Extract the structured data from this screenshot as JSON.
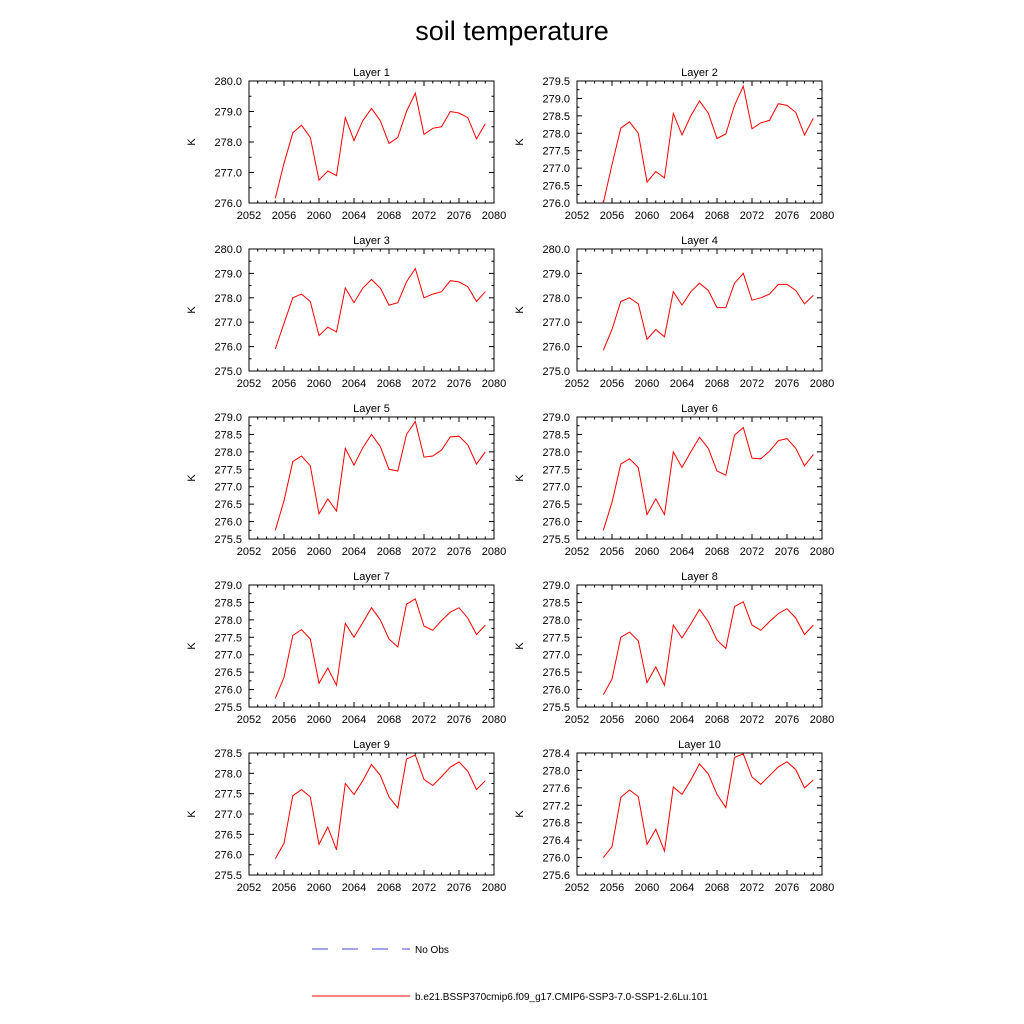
{
  "figure": {
    "title": "soil temperature",
    "legend": {
      "no_obs_label": "No Obs",
      "no_obs_color": "#4a4ad0",
      "run_label": "b.e21.BSSP370cmip6.f09_g17.CMIP6-SSP3-7.0-SSP1-2.6Lu.101",
      "run_color": "#ff0000"
    }
  },
  "chart_data": [
    {
      "type": "line",
      "title": "Layer 1",
      "xlabel": "",
      "ylabel": "K",
      "xlim": [
        2052,
        2080
      ],
      "ylim": [
        276.0,
        280.0
      ],
      "x_ticks": [
        2052,
        2056,
        2060,
        2064,
        2068,
        2072,
        2076,
        2080
      ],
      "y_ticks": [
        "276.0",
        "277.0",
        "278.0",
        "279.0",
        "280.0"
      ],
      "series": [
        {
          "color": "#ff0000",
          "x": [
            2055,
            2056,
            2057,
            2058,
            2059,
            2060,
            2061,
            2062,
            2063,
            2064,
            2065,
            2066,
            2067,
            2068,
            2069,
            2070,
            2071,
            2072,
            2073,
            2074,
            2075,
            2076,
            2077,
            2078,
            2079
          ],
          "values": [
            276.15,
            277.3,
            278.3,
            278.55,
            278.15,
            276.75,
            277.05,
            276.9,
            278.8,
            278.05,
            278.7,
            279.1,
            278.7,
            277.95,
            278.15,
            279.0,
            279.6,
            278.25,
            278.45,
            278.5,
            279.0,
            278.95,
            278.8,
            278.1,
            278.6
          ]
        }
      ]
    },
    {
      "type": "line",
      "title": "Layer 2",
      "xlabel": "",
      "ylabel": "K",
      "xlim": [
        2052,
        2080
      ],
      "ylim": [
        276.0,
        279.5
      ],
      "x_ticks": [
        2052,
        2056,
        2060,
        2064,
        2068,
        2072,
        2076,
        2080
      ],
      "y_ticks": [
        "276.0",
        "276.5",
        "277.0",
        "277.5",
        "278.0",
        "278.5",
        "279.0",
        "279.5"
      ],
      "series": [
        {
          "color": "#ff0000",
          "x": [
            2055,
            2056,
            2057,
            2058,
            2059,
            2060,
            2061,
            2062,
            2063,
            2064,
            2065,
            2066,
            2067,
            2068,
            2069,
            2070,
            2071,
            2072,
            2073,
            2074,
            2075,
            2076,
            2077,
            2078,
            2079
          ],
          "values": [
            276.0,
            277.1,
            278.15,
            278.33,
            278.0,
            276.6,
            276.9,
            276.72,
            278.57,
            277.95,
            278.5,
            278.93,
            278.58,
            277.85,
            277.98,
            278.8,
            279.35,
            278.13,
            278.3,
            278.37,
            278.85,
            278.8,
            278.6,
            277.95,
            278.43
          ]
        }
      ]
    },
    {
      "type": "line",
      "title": "Layer 3",
      "xlabel": "",
      "ylabel": "K",
      "xlim": [
        2052,
        2080
      ],
      "ylim": [
        275.0,
        280.0
      ],
      "x_ticks": [
        2052,
        2056,
        2060,
        2064,
        2068,
        2072,
        2076,
        2080
      ],
      "y_ticks": [
        "275.0",
        "276.0",
        "277.0",
        "278.0",
        "279.0",
        "280.0"
      ],
      "series": [
        {
          "color": "#ff0000",
          "x": [
            2055,
            2056,
            2057,
            2058,
            2059,
            2060,
            2061,
            2062,
            2063,
            2064,
            2065,
            2066,
            2067,
            2068,
            2069,
            2070,
            2071,
            2072,
            2073,
            2074,
            2075,
            2076,
            2077,
            2078,
            2079
          ],
          "values": [
            275.9,
            276.95,
            278.0,
            278.15,
            277.85,
            276.45,
            276.8,
            276.6,
            278.4,
            277.8,
            278.4,
            278.75,
            278.4,
            277.7,
            277.8,
            278.65,
            279.2,
            278.0,
            278.15,
            278.25,
            278.7,
            278.65,
            278.45,
            277.85,
            278.25
          ]
        }
      ]
    },
    {
      "type": "line",
      "title": "Layer 4",
      "xlabel": "",
      "ylabel": "K",
      "xlim": [
        2052,
        2080
      ],
      "ylim": [
        275.0,
        280.0
      ],
      "x_ticks": [
        2052,
        2056,
        2060,
        2064,
        2068,
        2072,
        2076,
        2080
      ],
      "y_ticks": [
        "275.0",
        "276.0",
        "277.0",
        "278.0",
        "279.0",
        "280.0"
      ],
      "series": [
        {
          "color": "#ff0000",
          "x": [
            2055,
            2056,
            2057,
            2058,
            2059,
            2060,
            2061,
            2062,
            2063,
            2064,
            2065,
            2066,
            2067,
            2068,
            2069,
            2070,
            2071,
            2072,
            2073,
            2074,
            2075,
            2076,
            2077,
            2078,
            2079
          ],
          "values": [
            275.85,
            276.7,
            277.85,
            278.0,
            277.75,
            276.3,
            276.7,
            276.4,
            278.25,
            277.7,
            278.25,
            278.6,
            278.3,
            277.6,
            277.6,
            278.6,
            279.0,
            277.9,
            278.0,
            278.15,
            278.55,
            278.55,
            278.3,
            277.75,
            278.1
          ]
        }
      ]
    },
    {
      "type": "line",
      "title": "Layer 5",
      "xlabel": "",
      "ylabel": "K",
      "xlim": [
        2052,
        2080
      ],
      "ylim": [
        275.5,
        279.0
      ],
      "x_ticks": [
        2052,
        2056,
        2060,
        2064,
        2068,
        2072,
        2076,
        2080
      ],
      "y_ticks": [
        "275.5",
        "276.0",
        "276.5",
        "277.0",
        "277.5",
        "278.0",
        "278.5",
        "279.0"
      ],
      "series": [
        {
          "color": "#ff0000",
          "x": [
            2055,
            2056,
            2057,
            2058,
            2059,
            2060,
            2061,
            2062,
            2063,
            2064,
            2065,
            2066,
            2067,
            2068,
            2069,
            2070,
            2071,
            2072,
            2073,
            2074,
            2075,
            2076,
            2077,
            2078,
            2079
          ],
          "values": [
            275.75,
            276.6,
            277.72,
            277.88,
            277.6,
            276.22,
            276.65,
            276.3,
            278.1,
            277.62,
            278.12,
            278.5,
            278.15,
            277.5,
            277.45,
            278.5,
            278.87,
            277.85,
            277.88,
            278.05,
            278.43,
            278.45,
            278.2,
            277.65,
            278.0
          ]
        }
      ]
    },
    {
      "type": "line",
      "title": "Layer 6",
      "xlabel": "",
      "ylabel": "K",
      "xlim": [
        2052,
        2080
      ],
      "ylim": [
        275.5,
        279.0
      ],
      "x_ticks": [
        2052,
        2056,
        2060,
        2064,
        2068,
        2072,
        2076,
        2080
      ],
      "y_ticks": [
        "275.5",
        "276.0",
        "276.5",
        "277.0",
        "277.5",
        "278.0",
        "278.5",
        "279.0"
      ],
      "series": [
        {
          "color": "#ff0000",
          "x": [
            2055,
            2056,
            2057,
            2058,
            2059,
            2060,
            2061,
            2062,
            2063,
            2064,
            2065,
            2066,
            2067,
            2068,
            2069,
            2070,
            2071,
            2072,
            2073,
            2074,
            2075,
            2076,
            2077,
            2078,
            2079
          ],
          "values": [
            275.75,
            276.55,
            277.65,
            277.8,
            277.55,
            276.2,
            276.65,
            276.2,
            278.0,
            277.55,
            278.0,
            278.42,
            278.1,
            277.45,
            277.33,
            278.48,
            278.7,
            277.82,
            277.8,
            278.02,
            278.32,
            278.38,
            278.1,
            277.6,
            277.92
          ]
        }
      ]
    },
    {
      "type": "line",
      "title": "Layer 7",
      "xlabel": "",
      "ylabel": "K",
      "xlim": [
        2052,
        2080
      ],
      "ylim": [
        275.5,
        279.0
      ],
      "x_ticks": [
        2052,
        2056,
        2060,
        2064,
        2068,
        2072,
        2076,
        2080
      ],
      "y_ticks": [
        "275.5",
        "276.0",
        "276.5",
        "277.0",
        "277.5",
        "278.0",
        "278.5",
        "279.0"
      ],
      "series": [
        {
          "color": "#ff0000",
          "x": [
            2055,
            2056,
            2057,
            2058,
            2059,
            2060,
            2061,
            2062,
            2063,
            2064,
            2065,
            2066,
            2067,
            2068,
            2069,
            2070,
            2071,
            2072,
            2073,
            2074,
            2075,
            2076,
            2077,
            2078,
            2079
          ],
          "values": [
            275.75,
            276.35,
            277.55,
            277.72,
            277.45,
            276.18,
            276.62,
            276.12,
            277.9,
            277.5,
            277.92,
            278.35,
            278.0,
            277.45,
            277.22,
            278.45,
            278.6,
            277.82,
            277.7,
            277.98,
            278.22,
            278.35,
            278.05,
            277.58,
            277.85
          ]
        }
      ]
    },
    {
      "type": "line",
      "title": "Layer 8",
      "xlabel": "",
      "ylabel": "K",
      "xlim": [
        2052,
        2080
      ],
      "ylim": [
        275.5,
        279.0
      ],
      "x_ticks": [
        2052,
        2056,
        2060,
        2064,
        2068,
        2072,
        2076,
        2080
      ],
      "y_ticks": [
        "275.5",
        "276.0",
        "276.5",
        "277.0",
        "277.5",
        "278.0",
        "278.5",
        "279.0"
      ],
      "series": [
        {
          "color": "#ff0000",
          "x": [
            2055,
            2056,
            2057,
            2058,
            2059,
            2060,
            2061,
            2062,
            2063,
            2064,
            2065,
            2066,
            2067,
            2068,
            2069,
            2070,
            2071,
            2072,
            2073,
            2074,
            2075,
            2076,
            2077,
            2078,
            2079
          ],
          "values": [
            275.85,
            276.3,
            277.5,
            277.65,
            277.4,
            276.2,
            276.65,
            276.12,
            277.85,
            277.48,
            277.88,
            278.3,
            277.95,
            277.42,
            277.18,
            278.38,
            278.52,
            277.85,
            277.7,
            277.95,
            278.18,
            278.32,
            278.05,
            277.58,
            277.85
          ]
        }
      ]
    },
    {
      "type": "line",
      "title": "Layer 9",
      "xlabel": "",
      "ylabel": "K",
      "xlim": [
        2052,
        2080
      ],
      "ylim": [
        275.5,
        278.5
      ],
      "x_ticks": [
        2052,
        2056,
        2060,
        2064,
        2068,
        2072,
        2076,
        2080
      ],
      "y_ticks": [
        "275.5",
        "276.0",
        "276.5",
        "277.0",
        "277.5",
        "278.0",
        "278.5"
      ],
      "series": [
        {
          "color": "#ff0000",
          "x": [
            2055,
            2056,
            2057,
            2058,
            2059,
            2060,
            2061,
            2062,
            2063,
            2064,
            2065,
            2066,
            2067,
            2068,
            2069,
            2070,
            2071,
            2072,
            2073,
            2074,
            2075,
            2076,
            2077,
            2078,
            2079
          ],
          "values": [
            275.9,
            276.28,
            277.45,
            277.6,
            277.42,
            276.25,
            276.68,
            276.12,
            277.75,
            277.48,
            277.82,
            278.22,
            277.95,
            277.42,
            277.15,
            278.35,
            278.45,
            277.85,
            277.7,
            277.92,
            278.15,
            278.28,
            278.05,
            277.6,
            277.82
          ]
        }
      ]
    },
    {
      "type": "line",
      "title": "Layer 10",
      "xlabel": "",
      "ylabel": "K",
      "xlim": [
        2052,
        2080
      ],
      "ylim": [
        275.6,
        278.4
      ],
      "x_ticks": [
        2052,
        2056,
        2060,
        2064,
        2068,
        2072,
        2076,
        2080
      ],
      "y_ticks": [
        "275.6",
        "276.0",
        "276.4",
        "276.8",
        "277.2",
        "277.6",
        "278.0",
        "278.4"
      ],
      "series": [
        {
          "color": "#ff0000",
          "x": [
            2055,
            2056,
            2057,
            2058,
            2059,
            2060,
            2061,
            2062,
            2063,
            2064,
            2065,
            2066,
            2067,
            2068,
            2069,
            2070,
            2071,
            2072,
            2073,
            2074,
            2075,
            2076,
            2077,
            2078,
            2079
          ],
          "values": [
            276.0,
            276.25,
            277.38,
            277.55,
            277.4,
            276.3,
            276.65,
            276.15,
            277.62,
            277.45,
            277.78,
            278.15,
            277.92,
            277.45,
            277.15,
            278.3,
            278.38,
            277.85,
            277.68,
            277.88,
            278.08,
            278.2,
            278.02,
            277.6,
            277.78
          ]
        }
      ]
    }
  ]
}
